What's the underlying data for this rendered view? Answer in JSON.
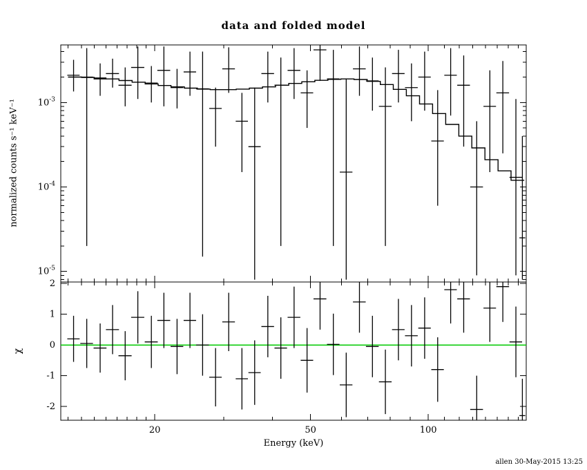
{
  "title": "data and folded model",
  "footer": {
    "timestamp": "allen 30-May-2015 13:25"
  },
  "colors": {
    "foreground": "#000000",
    "background": "#ffffff",
    "model_line": "#000000",
    "zero_line": "#00c800"
  },
  "chart_data": [
    {
      "type": "line",
      "panel": "spectrum",
      "title": "data and folded model",
      "xlabel": "Energy (keV)",
      "ylabel": "normalized counts s⁻¹ keV⁻¹",
      "xscale": "log",
      "yscale": "log",
      "xlim": [
        11.5,
        178
      ],
      "ylim": [
        7.5e-06,
        0.0048
      ],
      "x_major_ticks": [
        20,
        50,
        100
      ],
      "x_minor_ticks": [
        12,
        13,
        14,
        15,
        16,
        17,
        18,
        19,
        30,
        40,
        60,
        70,
        80,
        90,
        110,
        120,
        130,
        140,
        150,
        160,
        170
      ],
      "y_major_tick_exponents": [
        -3,
        -4,
        -5
      ],
      "legend": "none",
      "grid": false,
      "model_step": {
        "e": [
          12,
          13,
          14,
          15,
          16.2,
          17.5,
          18.9,
          20.4,
          22,
          23.8,
          25.7,
          27.7,
          29.9,
          32.3,
          34.9,
          37.7,
          40.7,
          44,
          47.5,
          51.3,
          55.4,
          59.8,
          64.6,
          69.8,
          75.4,
          81.4,
          87.9,
          95,
          102.6,
          110.8,
          119.7,
          129.2,
          139.6,
          150.8,
          162.8,
          176
        ],
        "v": [
          0.002,
          0.00198,
          0.00195,
          0.0019,
          0.00182,
          0.00174,
          0.00166,
          0.00159,
          0.00153,
          0.00148,
          0.00144,
          0.00142,
          0.00142,
          0.00144,
          0.00148,
          0.00153,
          0.0016,
          0.00168,
          0.00176,
          0.00183,
          0.00188,
          0.0019,
          0.00187,
          0.00178,
          0.00163,
          0.00143,
          0.0012,
          0.00096,
          0.00074,
          0.00055,
          0.0004,
          0.00029,
          0.00021,
          0.000155,
          0.00012
        ]
      },
      "points": [
        {
          "e": 12.4,
          "ew": 0.45,
          "v": 0.0021,
          "lo": 0.00135,
          "hi": 0.0032
        },
        {
          "e": 13.4,
          "ew": 0.5,
          "v": 0.002,
          "lo": 2e-05,
          "hi": 0.0044
        },
        {
          "e": 14.5,
          "ew": 0.55,
          "v": 0.0019,
          "lo": 0.0012,
          "hi": 0.0029
        },
        {
          "e": 15.6,
          "ew": 0.6,
          "v": 0.0022,
          "lo": 0.0015,
          "hi": 0.0033
        },
        {
          "e": 16.8,
          "ew": 0.65,
          "v": 0.0016,
          "lo": 0.0009,
          "hi": 0.0026
        },
        {
          "e": 18.1,
          "ew": 0.7,
          "v": 0.0026,
          "lo": 0.0011,
          "hi": 0.0046
        },
        {
          "e": 19.6,
          "ew": 0.75,
          "v": 0.0017,
          "lo": 0.001,
          "hi": 0.0027
        },
        {
          "e": 21.1,
          "ew": 0.8,
          "v": 0.0024,
          "lo": 0.0009,
          "hi": 0.0046
        },
        {
          "e": 22.8,
          "ew": 0.85,
          "v": 0.0015,
          "lo": 0.00085,
          "hi": 0.0025
        },
        {
          "e": 24.6,
          "ew": 0.9,
          "v": 0.0023,
          "lo": 0.0012,
          "hi": 0.004
        },
        {
          "e": 26.5,
          "ew": 1.0,
          "v": 0.00145,
          "lo": 1.5e-05,
          "hi": 0.004
        },
        {
          "e": 28.6,
          "ew": 1.05,
          "v": 0.00085,
          "lo": 0.0003,
          "hi": 0.0015
        },
        {
          "e": 30.9,
          "ew": 1.15,
          "v": 0.0025,
          "lo": 0.0013,
          "hi": 0.0045
        },
        {
          "e": 33.4,
          "ew": 1.2,
          "v": 0.0006,
          "lo": 0.00015,
          "hi": 0.0013
        },
        {
          "e": 36.0,
          "ew": 1.3,
          "v": 0.0003,
          "lo": 8e-06,
          "hi": 0.0015
        },
        {
          "e": 38.9,
          "ew": 1.45,
          "v": 0.0022,
          "lo": 0.001,
          "hi": 0.004
        },
        {
          "e": 42.0,
          "ew": 1.55,
          "v": 0.0016,
          "lo": 2e-05,
          "hi": 0.0034
        },
        {
          "e": 45.4,
          "ew": 1.7,
          "v": 0.0024,
          "lo": 0.0011,
          "hi": 0.0044
        },
        {
          "e": 49.0,
          "ew": 1.8,
          "v": 0.0013,
          "lo": 0.0005,
          "hi": 0.0024
        },
        {
          "e": 52.9,
          "ew": 2.0,
          "v": 0.0042,
          "lo": 0.0018,
          "hi": 0.0048
        },
        {
          "e": 57.2,
          "ew": 2.1,
          "v": 0.0019,
          "lo": 2e-05,
          "hi": 0.0042
        },
        {
          "e": 61.7,
          "ew": 2.3,
          "v": 0.00015,
          "lo": 8e-06,
          "hi": 0.0019
        },
        {
          "e": 66.7,
          "ew": 2.5,
          "v": 0.0025,
          "lo": 0.0012,
          "hi": 0.0046
        },
        {
          "e": 72.0,
          "ew": 2.7,
          "v": 0.0018,
          "lo": 0.0008,
          "hi": 0.0034
        },
        {
          "e": 77.7,
          "ew": 2.9,
          "v": 0.0009,
          "lo": 2e-05,
          "hi": 0.0026
        },
        {
          "e": 83.9,
          "ew": 3.1,
          "v": 0.0022,
          "lo": 0.001,
          "hi": 0.0042
        },
        {
          "e": 90.6,
          "ew": 3.4,
          "v": 0.0015,
          "lo": 0.0006,
          "hi": 0.0029
        },
        {
          "e": 97.9,
          "ew": 3.6,
          "v": 0.002,
          "lo": 0.0008,
          "hi": 0.004
        },
        {
          "e": 105.7,
          "ew": 3.9,
          "v": 0.00035,
          "lo": 6e-05,
          "hi": 0.0014
        },
        {
          "e": 114.1,
          "ew": 4.2,
          "v": 0.0021,
          "lo": 0.0007,
          "hi": 0.0044
        },
        {
          "e": 123.2,
          "ew": 4.6,
          "v": 0.0016,
          "lo": 0.0003,
          "hi": 0.0036
        },
        {
          "e": 133.0,
          "ew": 5.0,
          "v": 0.0001,
          "lo": 9e-06,
          "hi": 0.0006
        },
        {
          "e": 143.7,
          "ew": 5.3,
          "v": 0.0009,
          "lo": 0.00015,
          "hi": 0.0024
        },
        {
          "e": 155.1,
          "ew": 5.8,
          "v": 0.0013,
          "lo": 0.00025,
          "hi": 0.0031
        },
        {
          "e": 167.5,
          "ew": 6.2,
          "v": 0.00013,
          "lo": 9e-06,
          "hi": 0.0011
        },
        {
          "e": 174.0,
          "ew": 3.0,
          "v": 2.5e-05,
          "lo": 8e-06,
          "hi": 0.0004
        }
      ]
    },
    {
      "type": "scatter",
      "panel": "residuals",
      "xlabel": "Energy (keV)",
      "ylabel": "χ",
      "xscale": "log",
      "yscale": "linear",
      "xlim": [
        11.5,
        178
      ],
      "ylim": [
        -2.45,
        2.05
      ],
      "x_major_ticks": [
        20,
        50,
        100
      ],
      "x_minor_ticks": [
        12,
        13,
        14,
        15,
        16,
        17,
        18,
        19,
        30,
        40,
        60,
        70,
        80,
        90,
        110,
        120,
        130,
        140,
        150,
        160,
        170
      ],
      "y_major_ticks": [
        2,
        1,
        0,
        -1,
        -2
      ],
      "y_minor_step": 0.5,
      "zero_line": 0,
      "grid": false,
      "points": [
        {
          "e": 12.4,
          "ew": 0.45,
          "chi": 0.2,
          "err": 0.75
        },
        {
          "e": 13.4,
          "ew": 0.5,
          "chi": 0.05,
          "err": 0.8
        },
        {
          "e": 14.5,
          "ew": 0.55,
          "chi": -0.1,
          "err": 0.8
        },
        {
          "e": 15.6,
          "ew": 0.6,
          "chi": 0.5,
          "err": 0.8
        },
        {
          "e": 16.8,
          "ew": 0.65,
          "chi": -0.35,
          "err": 0.8
        },
        {
          "e": 18.1,
          "ew": 0.7,
          "chi": 0.9,
          "err": 0.85
        },
        {
          "e": 19.6,
          "ew": 0.75,
          "chi": 0.1,
          "err": 0.85
        },
        {
          "e": 21.1,
          "ew": 0.8,
          "chi": 0.8,
          "err": 0.9
        },
        {
          "e": 22.8,
          "ew": 0.85,
          "chi": -0.05,
          "err": 0.9
        },
        {
          "e": 24.6,
          "ew": 0.9,
          "chi": 0.8,
          "err": 0.9
        },
        {
          "e": 26.5,
          "ew": 1.0,
          "chi": 0.0,
          "err": 1.0
        },
        {
          "e": 28.6,
          "ew": 1.05,
          "chi": -1.05,
          "err": 0.95
        },
        {
          "e": 30.9,
          "ew": 1.15,
          "chi": 0.75,
          "err": 0.95
        },
        {
          "e": 33.4,
          "ew": 1.2,
          "chi": -1.1,
          "err": 1.0
        },
        {
          "e": 36.0,
          "ew": 1.3,
          "chi": -0.9,
          "err": 1.05
        },
        {
          "e": 38.9,
          "ew": 1.45,
          "chi": 0.6,
          "err": 1.0
        },
        {
          "e": 42.0,
          "ew": 1.55,
          "chi": -0.1,
          "err": 1.0
        },
        {
          "e": 45.4,
          "ew": 1.7,
          "chi": 0.9,
          "err": 1.0
        },
        {
          "e": 49.0,
          "ew": 1.8,
          "chi": -0.5,
          "err": 1.05
        },
        {
          "e": 52.9,
          "ew": 2.0,
          "chi": 1.5,
          "err": 1.0
        },
        {
          "e": 57.2,
          "ew": 2.1,
          "chi": 0.02,
          "err": 1.0
        },
        {
          "e": 61.7,
          "ew": 2.3,
          "chi": -1.3,
          "err": 1.05
        },
        {
          "e": 66.7,
          "ew": 2.5,
          "chi": 1.4,
          "err": 1.0
        },
        {
          "e": 72.0,
          "ew": 2.7,
          "chi": -0.05,
          "err": 1.0
        },
        {
          "e": 77.7,
          "ew": 2.9,
          "chi": -1.2,
          "err": 1.05
        },
        {
          "e": 83.9,
          "ew": 3.1,
          "chi": 0.5,
          "err": 1.0
        },
        {
          "e": 90.6,
          "ew": 3.4,
          "chi": 0.3,
          "err": 1.0
        },
        {
          "e": 97.9,
          "ew": 3.6,
          "chi": 0.55,
          "err": 1.0
        },
        {
          "e": 105.7,
          "ew": 3.9,
          "chi": -0.8,
          "err": 1.05
        },
        {
          "e": 114.1,
          "ew": 4.2,
          "chi": 1.8,
          "err": 1.1
        },
        {
          "e": 123.2,
          "ew": 4.6,
          "chi": 1.5,
          "err": 1.1
        },
        {
          "e": 133.0,
          "ew": 5.0,
          "chi": -2.1,
          "err": 1.1
        },
        {
          "e": 143.7,
          "ew": 5.3,
          "chi": 1.2,
          "err": 1.1
        },
        {
          "e": 155.1,
          "ew": 5.8,
          "chi": 1.9,
          "err": 1.15
        },
        {
          "e": 167.5,
          "ew": 6.2,
          "chi": 0.1,
          "err": 1.15
        },
        {
          "e": 174.0,
          "ew": 3.0,
          "chi": -2.3,
          "err": 1.2
        }
      ]
    }
  ]
}
